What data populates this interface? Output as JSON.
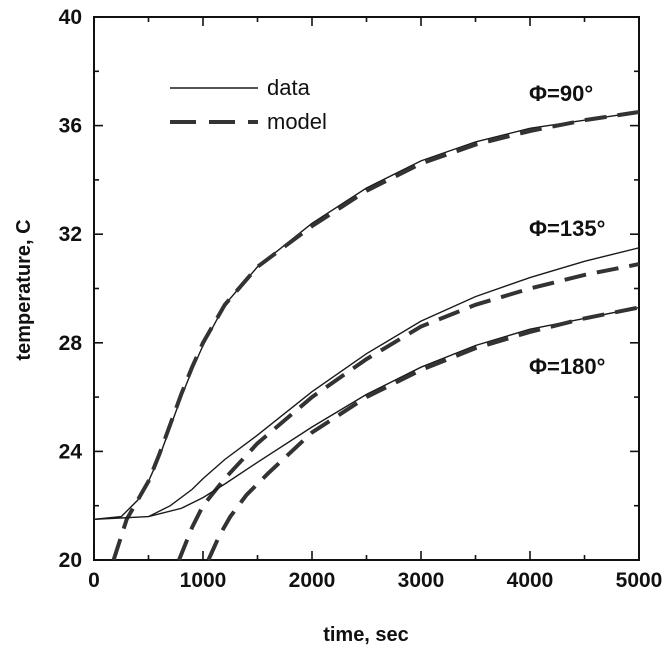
{
  "chart_data": {
    "type": "line",
    "title": "",
    "xlabel": "time, sec",
    "ylabel": "temperature, C",
    "xlim": [
      0,
      5000
    ],
    "ylim": [
      20,
      40
    ],
    "x_ticks": [
      0,
      1000,
      2000,
      3000,
      4000,
      5000
    ],
    "y_ticks": [
      20,
      24,
      28,
      32,
      36,
      40
    ],
    "grid": false,
    "legend": {
      "placement": "top-left",
      "entries": [
        {
          "label": "data",
          "style": "solid"
        },
        {
          "label": "model",
          "style": "dashed"
        }
      ]
    },
    "annotations": [
      "Φ=90°",
      "Φ=135°",
      "Φ=180°"
    ],
    "series": [
      {
        "group": "Φ=90°",
        "kind": "data",
        "x": [
          0,
          250,
          400,
          500,
          600,
          700,
          800,
          900,
          1000,
          1200,
          1500,
          2000,
          2500,
          3000,
          3500,
          4000,
          4500,
          5000
        ],
        "y": [
          21.5,
          21.6,
          22.2,
          22.9,
          23.8,
          24.9,
          26.0,
          27.0,
          27.9,
          29.4,
          30.8,
          32.4,
          33.7,
          34.7,
          35.4,
          35.9,
          36.2,
          36.5
        ]
      },
      {
        "group": "Φ=90°",
        "kind": "model",
        "x": [
          180,
          300,
          400,
          500,
          600,
          700,
          800,
          900,
          1000,
          1200,
          1500,
          2000,
          2500,
          3000,
          3500,
          4000,
          4500,
          5000
        ],
        "y": [
          20.0,
          21.5,
          22.2,
          22.9,
          23.9,
          25.0,
          26.1,
          27.1,
          28.0,
          29.4,
          30.8,
          32.3,
          33.6,
          34.6,
          35.3,
          35.8,
          36.2,
          36.5
        ]
      },
      {
        "group": "Φ=135°",
        "kind": "data",
        "x": [
          0,
          500,
          700,
          900,
          1000,
          1200,
          1500,
          2000,
          2500,
          3000,
          3500,
          4000,
          4500,
          5000
        ],
        "y": [
          21.5,
          21.6,
          22.0,
          22.6,
          23.0,
          23.7,
          24.6,
          26.2,
          27.6,
          28.8,
          29.7,
          30.4,
          31.0,
          31.5
        ]
      },
      {
        "group": "Φ=135°",
        "kind": "model",
        "x": [
          780,
          900,
          1000,
          1200,
          1500,
          2000,
          2500,
          3000,
          3500,
          4000,
          4500,
          5000
        ],
        "y": [
          20.0,
          21.2,
          22.0,
          23.0,
          24.3,
          26.0,
          27.4,
          28.6,
          29.4,
          30.0,
          30.5,
          30.9
        ]
      },
      {
        "group": "Φ=180°",
        "kind": "data",
        "x": [
          500,
          800,
          1000,
          1200,
          1500,
          2000,
          2500,
          3000,
          3500,
          4000,
          4500,
          5000
        ],
        "y": [
          21.6,
          21.9,
          22.3,
          22.8,
          23.6,
          24.9,
          26.1,
          27.1,
          27.9,
          28.5,
          28.9,
          29.3
        ]
      },
      {
        "group": "Φ=180°",
        "kind": "model",
        "x": [
          1050,
          1150,
          1250,
          1400,
          1600,
          2000,
          2500,
          3000,
          3500,
          4000,
          4500,
          5000
        ],
        "y": [
          20.0,
          20.9,
          21.6,
          22.4,
          23.2,
          24.7,
          26.0,
          27.0,
          27.8,
          28.4,
          28.9,
          29.3
        ]
      }
    ]
  },
  "colors": {
    "line": "#1a1a1a",
    "axis": "#111111",
    "background": "#ffffff"
  }
}
